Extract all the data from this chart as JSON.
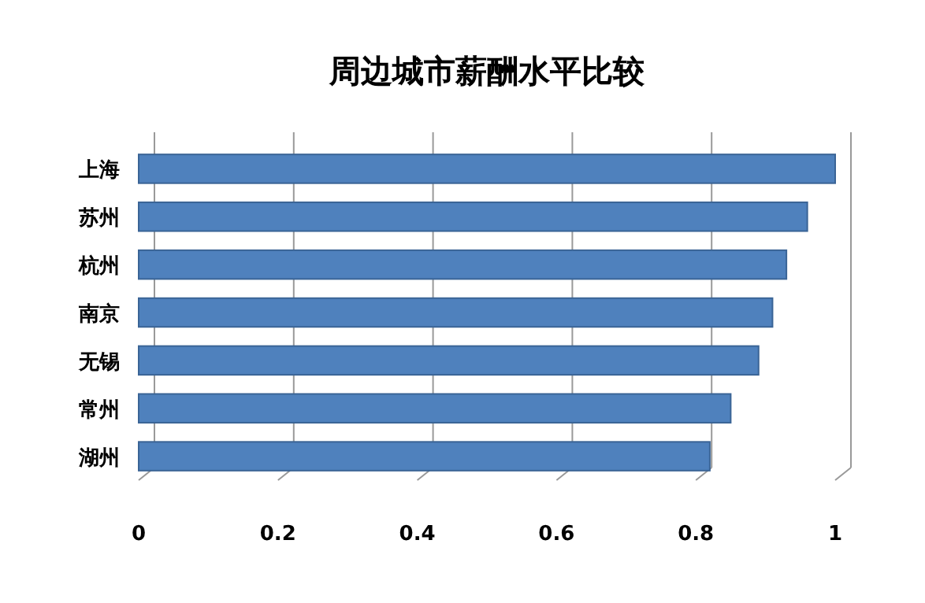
{
  "chart_data": {
    "type": "bar",
    "orientation": "horizontal",
    "title": "周边城市薪酬水平比较",
    "categories": [
      "上海",
      "苏州",
      "杭州",
      "南京",
      "无锡",
      "常州",
      "湖州"
    ],
    "values": [
      1,
      0.96,
      0.93,
      0.91,
      0.89,
      0.85,
      0.82
    ],
    "color": "#4f81bd",
    "xlim": [
      0,
      1
    ],
    "xticks": [
      0,
      0.2,
      0.4,
      0.6,
      0.8,
      1
    ],
    "grid": "x"
  }
}
